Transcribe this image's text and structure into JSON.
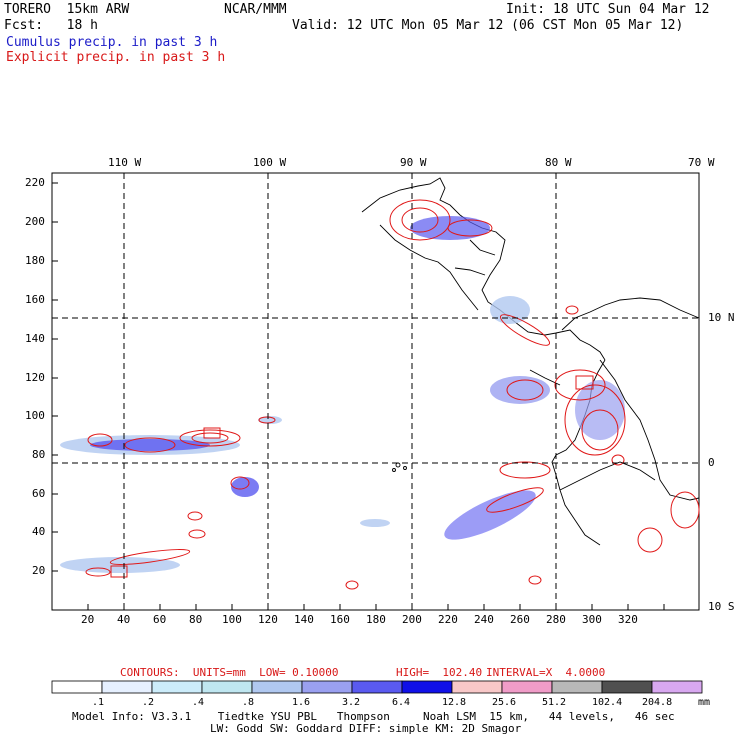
{
  "header": {
    "model": "TORERO  15km ARW",
    "org": "NCAR/MMM",
    "init": "Init: 18 UTC Sun 04 Mar 12",
    "fcst": "Fcst:   18 h",
    "valid": "Valid: 12 UTC Mon 05 Mar 12 (06 CST Mon 05 Mar 12)",
    "cumulus": "Cumulus precip. in past 3 h",
    "explicit": "Explicit precip. in past 3 h"
  },
  "map": {
    "lon_labels": [
      "110 W",
      "100 W",
      "90 W",
      "80 W",
      "70 W"
    ],
    "lat_labels": [
      "10 N",
      "0",
      "10 S"
    ],
    "x_ticks": [
      "20",
      "40",
      "60",
      "80",
      "100",
      "120",
      "140",
      "160",
      "180",
      "200",
      "220",
      "240",
      "260",
      "280",
      "300",
      "320"
    ],
    "y_ticks": [
      "20",
      "40",
      "60",
      "80",
      "100",
      "120",
      "140",
      "160",
      "180",
      "200",
      "220"
    ]
  },
  "contours_info": {
    "contours": "CONTOURS:  UNITS=mm  LOW= 0.10000",
    "high": "HIGH=  102.40",
    "interval": "INTERVAL=X  4.0000"
  },
  "colorbar": {
    "colors": [
      "#ffffff",
      "#e6f0ff",
      "#ccecfa",
      "#bfe6f0",
      "#b0c8f0",
      "#9aa0f0",
      "#5a5af0",
      "#1010e8",
      "#f8c8c8",
      "#f09cc8",
      "#b8b8b8",
      "#505050",
      "#d8a8f0"
    ],
    "labels": [
      ".1",
      ".2",
      ".4",
      ".8",
      "1.6",
      "3.2",
      "6.4",
      "12.8",
      "25.6",
      "51.2",
      "102.4",
      "204.8"
    ],
    "unit": "mm"
  },
  "footer": {
    "line1": "Model Info: V3.3.1    Tiedtke YSU PBL   Thompson     Noah LSM  15 km,   44 levels,   46 sec",
    "line2": "LW: Godd SW: Goddard DIFF: simple KM: 2D Smagor"
  }
}
